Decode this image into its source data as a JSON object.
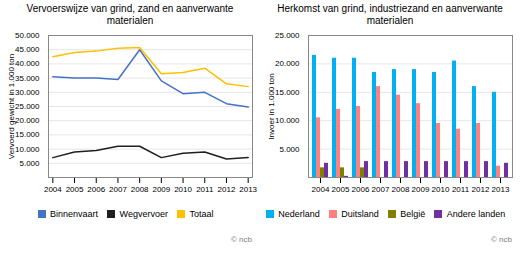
{
  "chart_data": [
    {
      "type": "line",
      "title": "Vervoerswijze van grind, zand en aanverwante materialen",
      "ylabel": "Vervoerd gewicht in 1.000 ton",
      "x": [
        2004,
        2005,
        2006,
        2007,
        2008,
        2009,
        2010,
        2011,
        2012,
        2013
      ],
      "xlim": [
        2003.8,
        2013.2
      ],
      "xticks": [
        2004,
        2005,
        2006,
        2007,
        2008,
        2009,
        2010,
        2011,
        2012,
        2013
      ],
      "ylim": [
        0,
        50000
      ],
      "yticks": [
        {
          "value": 5000,
          "label": "5.000"
        },
        {
          "value": 10000,
          "label": "10.000"
        },
        {
          "value": 15000,
          "label": "15.000"
        },
        {
          "value": 20000,
          "label": "20.000"
        },
        {
          "value": 25000,
          "label": "25.000"
        },
        {
          "value": 30000,
          "label": "30.000"
        },
        {
          "value": 35000,
          "label": "35.000"
        },
        {
          "value": 40000,
          "label": "40.000"
        },
        {
          "value": 45000,
          "label": "45.000"
        },
        {
          "value": 50000,
          "label": "50.000"
        }
      ],
      "grid": true,
      "legend": "bottom",
      "annotation": "© ncb",
      "series": [
        {
          "name": "Binnenvaart",
          "color": "#4472C4",
          "values": [
            35500,
            35000,
            35000,
            34500,
            45000,
            34000,
            29500,
            30000,
            26000,
            24800
          ]
        },
        {
          "name": "Wegvervoer",
          "color": "#1F1F1F",
          "values": [
            7000,
            9000,
            9500,
            11000,
            11000,
            7000,
            8500,
            9000,
            6500,
            7000
          ]
        },
        {
          "name": "Totaal",
          "color": "#FFC000",
          "values": [
            42500,
            44000,
            44500,
            45500,
            45800,
            36500,
            37000,
            38500,
            33000,
            32000
          ]
        }
      ]
    },
    {
      "type": "bar",
      "title": "Herkomst van grind, industriezand en aanverwante materialen",
      "ylabel": "Invoer in 1.000 ton",
      "categories": [
        "2004",
        "2005",
        "2006",
        "2007",
        "2008",
        "2009",
        "2010",
        "2011",
        "2012",
        "2013"
      ],
      "ylim": [
        0,
        25000
      ],
      "yticks": [
        {
          "value": 5000,
          "label": "5.000"
        },
        {
          "value": 10000,
          "label": "10.000"
        },
        {
          "value": 15000,
          "label": "15.000"
        },
        {
          "value": 20000,
          "label": "20.000"
        },
        {
          "value": 25000,
          "label": "25.000"
        }
      ],
      "grid": true,
      "legend": "bottom",
      "annotation": "© ncb",
      "series": [
        {
          "name": "Nederland",
          "color": "#00B0F0",
          "values": [
            21500,
            21000,
            21000,
            18500,
            19000,
            19000,
            18500,
            20500,
            16000,
            15000
          ]
        },
        {
          "name": "Duitsland",
          "color": "#FF8080",
          "values": [
            10500,
            12000,
            12500,
            16000,
            14500,
            13000,
            9500,
            8500,
            9500,
            2000
          ]
        },
        {
          "name": "België",
          "color": "#808000",
          "values": [
            1700,
            1700,
            1700,
            0,
            0,
            0,
            0,
            0,
            0,
            0
          ]
        },
        {
          "name": "Andere landen",
          "color": "#7030A0",
          "values": [
            2500,
            200,
            2800,
            2800,
            2800,
            2800,
            2800,
            2800,
            2800,
            2500
          ]
        }
      ]
    }
  ]
}
